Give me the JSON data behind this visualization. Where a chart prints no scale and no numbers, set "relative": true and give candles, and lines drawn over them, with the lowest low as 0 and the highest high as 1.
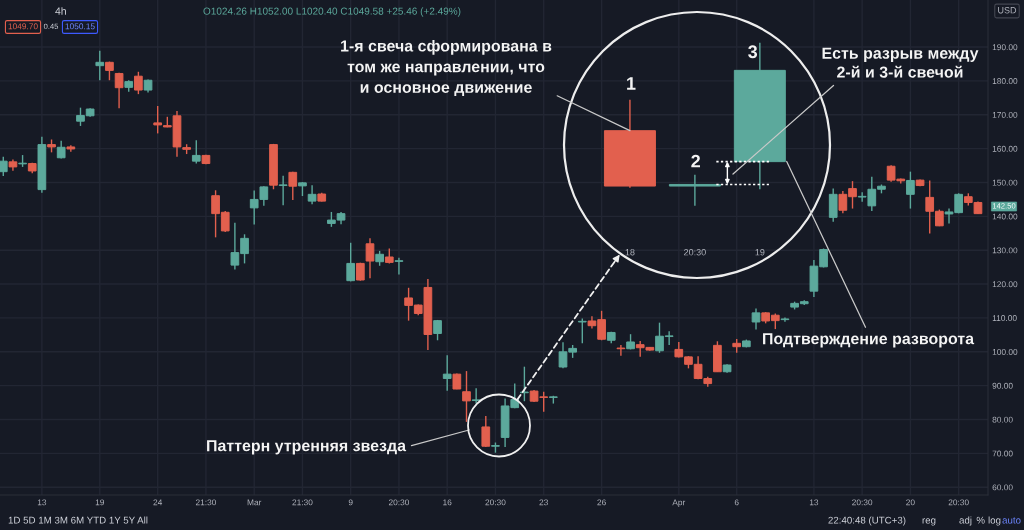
{
  "chart_data": [
    {
      "type": "candlestick",
      "categories": [
        null,
        null,
        null,
        null,
        "13",
        null,
        null,
        null,
        null,
        null,
        "19",
        null,
        null,
        null,
        null,
        null,
        "24",
        null,
        null,
        null,
        null,
        "21:30",
        null,
        null,
        null,
        null,
        "Mar",
        null,
        null,
        null,
        null,
        "21:30",
        null,
        null,
        null,
        null,
        "9",
        null,
        null,
        null,
        null,
        "20:30",
        null,
        null,
        null,
        null,
        "16",
        null,
        null,
        null,
        null,
        "20:30",
        null,
        null,
        null,
        null,
        "23",
        null,
        null,
        null,
        null,
        null,
        "26",
        null,
        null,
        null,
        null,
        null,
        null,
        null,
        "Apr",
        null,
        null,
        null,
        null,
        null,
        "6",
        null,
        null,
        null,
        null,
        null,
        null,
        null,
        "13",
        null,
        null,
        null,
        null,
        "20:30",
        null,
        null,
        null,
        null,
        "20",
        null,
        null,
        null,
        null,
        "20:30",
        null,
        null
      ],
      "ohlc": [
        [
          153.2,
          157.6,
          151.9,
          156.3
        ],
        [
          156.1,
          156.8,
          153.5,
          154.6
        ],
        [
          155.5,
          158.1,
          154.6,
          155.7
        ],
        [
          155.6,
          155.8,
          152.7,
          153.4
        ],
        [
          147.9,
          163.5,
          147.0,
          161.2
        ],
        [
          161.2,
          162.7,
          158.9,
          160.5
        ],
        [
          157.3,
          162.3,
          157.1,
          160.4
        ],
        [
          160.5,
          161.0,
          159.1,
          159.9
        ],
        [
          168.1,
          172.1,
          166.7,
          169.8
        ],
        [
          169.7,
          171.9,
          169.4,
          171.7
        ],
        [
          184.5,
          188.9,
          180.2,
          185.5
        ],
        [
          185.5,
          185.7,
          180.2,
          183.1
        ],
        [
          182.2,
          182.4,
          171.9,
          178.0
        ],
        [
          178.1,
          180.2,
          176.8,
          179.8
        ],
        [
          181.4,
          182.7,
          176.1,
          177.3
        ],
        [
          177.3,
          180.4,
          176.6,
          180.2
        ],
        [
          167.6,
          172.6,
          164.5,
          167.0
        ],
        [
          166.8,
          169.4,
          166.3,
          166.4
        ],
        [
          169.7,
          171.1,
          157.6,
          160.5
        ],
        [
          160.3,
          161.3,
          158.4,
          159.8
        ],
        [
          156.3,
          162.5,
          155.6,
          158.0
        ],
        [
          158.0,
          158.2,
          155.4,
          155.6
        ],
        [
          146.1,
          147.7,
          133.8,
          140.8
        ],
        [
          141.2,
          141.6,
          135.4,
          135.7
        ],
        [
          125.6,
          138.1,
          124.3,
          129.3
        ],
        [
          129.0,
          134.7,
          126.1,
          133.5
        ],
        [
          142.5,
          147.6,
          137.6,
          145.0
        ],
        [
          145.0,
          148.9,
          143.1,
          148.7
        ],
        [
          161.2,
          161.4,
          148.0,
          149.2
        ],
        [
          149.1,
          152.0,
          143.3,
          149.3
        ],
        [
          153.0,
          153.2,
          144.8,
          148.9
        ],
        [
          149.0,
          150.1,
          146.0,
          149.9
        ],
        [
          144.5,
          149.2,
          143.6,
          146.5
        ],
        [
          146.6,
          147.0,
          144.4,
          144.5
        ],
        [
          137.9,
          141.3,
          136.9,
          138.9
        ],
        [
          138.9,
          141.3,
          137.7,
          140.8
        ],
        [
          121.0,
          132.2,
          120.8,
          126.1
        ],
        [
          126.1,
          126.3,
          121.0,
          121.2
        ],
        [
          131.9,
          133.5,
          121.7,
          126.8
        ],
        [
          126.6,
          129.8,
          125.4,
          128.8
        ],
        [
          128.0,
          130.5,
          126.1,
          126.4
        ],
        [
          126.7,
          127.8,
          122.8,
          126.9
        ],
        [
          115.9,
          118.9,
          109.2,
          113.7
        ],
        [
          113.8,
          114.0,
          110.8,
          111.3
        ],
        [
          119.0,
          121.5,
          100.5,
          105.1
        ],
        [
          105.4,
          109.4,
          103.4,
          109.2
        ],
        [
          92.1,
          99.0,
          88.5,
          93.4
        ],
        [
          93.4,
          93.6,
          88.9,
          89.0
        ],
        [
          88.2,
          94.3,
          79.3,
          85.5
        ],
        [
          85.6,
          89.2,
          84.7,
          85.8
        ],
        [
          77.8,
          81.0,
          71.9,
          72.1
        ],
        [
          72.1,
          73.2,
          70.2,
          72.3
        ],
        [
          74.7,
          86.2,
          71.9,
          84.0
        ],
        [
          83.5,
          90.6,
          83.3,
          85.9
        ],
        [
          87.9,
          95.6,
          85.4,
          88.1
        ],
        [
          88.4,
          88.7,
          85.2,
          85.4
        ],
        [
          86.7,
          88.2,
          82.3,
          86.5
        ],
        [
          86.5,
          87.0,
          84.7,
          86.7
        ],
        [
          95.5,
          102.8,
          95.1,
          100.0
        ],
        [
          99.9,
          102.0,
          98.2,
          101.0
        ],
        [
          108.8,
          109.8,
          102.5,
          109.0
        ],
        [
          109.1,
          110.5,
          106.9,
          107.7
        ],
        [
          109.5,
          112.1,
          103.4,
          103.7
        ],
        [
          103.4,
          105.9,
          102.5,
          105.7
        ],
        [
          101.1,
          102.0,
          98.8,
          100.9
        ],
        [
          100.9,
          105.2,
          100.7,
          102.9
        ],
        [
          102.1,
          103.2,
          98.5,
          101.2
        ],
        [
          101.3,
          101.4,
          100.3,
          100.5
        ],
        [
          100.3,
          108.6,
          99.7,
          104.6
        ],
        [
          104.5,
          106.1,
          102.0,
          104.7
        ],
        [
          100.7,
          102.9,
          98.3,
          98.5
        ],
        [
          98.5,
          98.7,
          95.1,
          96.3
        ],
        [
          96.3,
          98.7,
          91.9,
          92.1
        ],
        [
          92.1,
          92.6,
          89.7,
          90.6
        ],
        [
          101.9,
          103.1,
          94.1,
          94.1
        ],
        [
          94.1,
          96.3,
          93.8,
          96.1
        ],
        [
          102.5,
          103.8,
          99.7,
          101.5
        ],
        [
          101.5,
          103.6,
          101.3,
          103.2
        ],
        [
          108.8,
          112.8,
          106.6,
          111.5
        ],
        [
          111.5,
          111.7,
          108.4,
          109.1
        ],
        [
          110.8,
          111.3,
          106.7,
          109.2
        ],
        [
          109.5,
          110.1,
          108.9,
          109.7
        ],
        [
          113.2,
          114.8,
          112.5,
          114.3
        ],
        [
          114.2,
          115.2,
          113.8,
          114.8
        ],
        [
          117.9,
          127.1,
          116.2,
          125.3
        ],
        [
          125.1,
          130.5,
          124.9,
          130.2
        ],
        [
          139.7,
          148.2,
          138.4,
          146.5
        ],
        [
          146.5,
          147.5,
          140.9,
          141.8
        ],
        [
          148.2,
          150.4,
          142.3,
          145.8
        ],
        [
          145.7,
          147.1,
          144.3,
          145.9
        ],
        [
          143.1,
          151.7,
          141.6,
          148.0
        ],
        [
          148.0,
          149.4,
          146.8,
          148.9
        ],
        [
          154.8,
          155.1,
          150.2,
          150.7
        ],
        [
          151.0,
          151.2,
          149.7,
          150.5
        ],
        [
          146.5,
          153.2,
          142.3,
          150.6
        ],
        [
          150.7,
          150.9,
          148.9,
          149.1
        ],
        [
          145.6,
          150.6,
          134.9,
          141.5
        ],
        [
          141.5,
          142.0,
          137.1,
          137.2
        ],
        [
          140.7,
          142.3,
          137.9,
          141.3
        ],
        [
          141.1,
          146.8,
          140.9,
          146.5
        ],
        [
          145.8,
          146.8,
          143.2,
          144.1
        ],
        [
          144.1,
          144.4,
          140.7,
          140.8
        ]
      ],
      "colors": [
        "#5ca99c",
        "#e2604e",
        "#5ca99c",
        "#e2604e",
        "#5ca99c",
        "#e2604e",
        "#5ca99c",
        "#e2604e",
        "#5ca99c",
        "#5ca99c",
        "#5ca99c",
        "#e2604e",
        "#e2604e",
        "#5ca99c",
        "#e2604e",
        "#5ca99c",
        "#e2604e",
        "#e2604e",
        "#e2604e",
        "#e2604e",
        "#5ca99c",
        "#e2604e",
        "#e2604e",
        "#e2604e",
        "#5ca99c",
        "#5ca99c",
        "#5ca99c",
        "#5ca99c",
        "#e2604e",
        "#5ca99c",
        "#e2604e",
        "#5ca99c",
        "#5ca99c",
        "#e2604e",
        "#5ca99c",
        "#5ca99c",
        "#5ca99c",
        "#e2604e",
        "#e2604e",
        "#5ca99c",
        "#e2604e",
        "#5ca99c",
        "#e2604e",
        "#e2604e",
        "#e2604e",
        "#5ca99c",
        "#5ca99c",
        "#e2604e",
        "#e2604e",
        "#5ca99c",
        "#e2604e",
        "#5ca99c",
        "#5ca99c",
        "#5ca99c",
        "#5ca99c",
        "#e2604e",
        "#e2604e",
        "#5ca99c",
        "#5ca99c",
        "#5ca99c",
        "#5ca99c",
        "#e2604e",
        "#e2604e",
        "#5ca99c",
        "#e2604e",
        "#5ca99c",
        "#e2604e",
        "#e2604e",
        "#5ca99c",
        "#5ca99c",
        "#e2604e",
        "#e2604e",
        "#e2604e",
        "#e2604e",
        "#e2604e",
        "#5ca99c",
        "#e2604e",
        "#5ca99c",
        "#5ca99c",
        "#e2604e",
        "#e2604e",
        "#5ca99c",
        "#5ca99c",
        "#5ca99c",
        "#5ca99c",
        "#5ca99c",
        "#5ca99c",
        "#e2604e",
        "#e2604e",
        "#5ca99c",
        "#5ca99c",
        "#5ca99c",
        "#e2604e",
        "#e2604e",
        "#5ca99c",
        "#e2604e",
        "#e2604e",
        "#e2604e",
        "#5ca99c",
        "#5ca99c",
        "#e2604e",
        "#e2604e"
      ],
      "ylim": [
        57.7,
        203.9
      ],
      "yticks": [
        {
          "value": 60,
          "label": "60.00"
        },
        {
          "value": 70,
          "label": "70.00"
        },
        {
          "value": 80,
          "label": "80.00"
        },
        {
          "value": 90,
          "label": "90.00"
        },
        {
          "value": 100,
          "label": "100.00"
        },
        {
          "value": 110,
          "label": "110.00"
        },
        {
          "value": 120,
          "label": "120.00"
        },
        {
          "value": 130,
          "label": "130.00"
        },
        {
          "value": 140,
          "label": "140.00"
        },
        {
          "value": 150,
          "label": "150.00"
        },
        {
          "value": 160,
          "label": "160.00"
        },
        {
          "value": 170,
          "label": "170.00"
        },
        {
          "value": 180,
          "label": "180.00"
        },
        {
          "value": 190,
          "label": "190.00"
        }
      ],
      "grid": true,
      "annotations": [
        "4h",
        "O1024.26 H1052.00 L1020.40 C1049.58 +25.46 (+2.49%)",
        "1049.70",
        "0.45",
        "1050.15",
        "USD",
        "1D 5D 1M 3M 6M YTD 1Y 5Y All",
        "22:40:48 (UTC+3)",
        "reg",
        "adj",
        "%",
        "log",
        "auto",
        "Паттерн утренняя звезда",
        "142.50"
      ]
    },
    {
      "type": "candlestick",
      "categories": [
        "18",
        "20:30",
        "19"
      ],
      "ohlc": [
        [
          0.46,
          0.65,
          0.11,
          0.12
        ],
        [
          0.12,
          0.19,
          0.0,
          0.13
        ],
        [
          0.27,
          1.0,
          0.1,
          0.83
        ]
      ],
      "colors": [
        "#e2604e",
        "#5ca99c",
        "#5ca99c"
      ],
      "relative": true,
      "tick_labels": "x",
      "ref_lines": [
        {
          "axis": "y",
          "value": 0.13,
          "color": "#ffffff",
          "line_style": "dotted"
        },
        {
          "axis": "y",
          "value": 0.27,
          "color": "#ffffff",
          "line_style": "dotted"
        }
      ],
      "annotations": [
        "1",
        "2",
        "3",
        {
          "text": "1-я свеча сформирована в\nтом же направлении, что\nи основное движение",
          "x": "18",
          "y": 0.46
        },
        "Есть разрыв между\n2-й и 3-й свечой",
        "Подтверждение разворота"
      ]
    }
  ]
}
